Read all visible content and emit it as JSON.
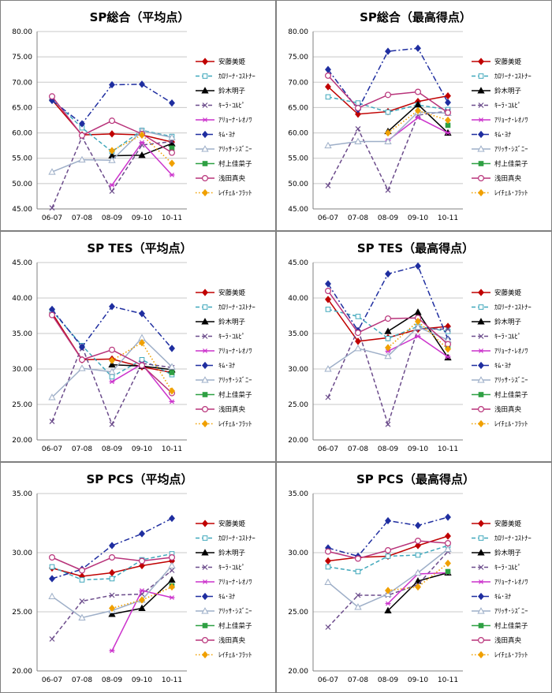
{
  "legend": [
    {
      "name": "安藤美姫",
      "color": "#C00000",
      "dash": "solid",
      "marker": "diamond",
      "filled": true
    },
    {
      "name": "ｶﾛﾘｰﾅ･ｺｽﾄﾅｰ",
      "color": "#3FA7BB",
      "dash": "dash",
      "marker": "square",
      "filled": false
    },
    {
      "name": "鈴木明子",
      "color": "#000000",
      "dash": "solid",
      "marker": "triangle",
      "filled": true
    },
    {
      "name": "ｷｰﾗ･ｺﾙﾋﾟ",
      "color": "#6B4B8B",
      "dash": "dash",
      "marker": "x",
      "filled": false
    },
    {
      "name": "ｱﾘｮｰﾅ･ﾚｵﾉﾜ",
      "color": "#CC33CC",
      "dash": "solid",
      "marker": "star",
      "filled": false
    },
    {
      "name": "ｷﾑ･ﾖﾅ",
      "color": "#1F2EA0",
      "dash": "dashdot",
      "marker": "diamond",
      "filled": true
    },
    {
      "name": "ｱﾘｯｻ･ｼｽﾞﾆｰ",
      "color": "#9EAFC8",
      "dash": "solid",
      "marker": "triangle",
      "filled": false
    },
    {
      "name": "村上佳菜子",
      "color": "#2EA043",
      "dash": "solid",
      "marker": "square",
      "filled": true
    },
    {
      "name": "浅田真央",
      "color": "#B8337A",
      "dash": "solid",
      "marker": "circle",
      "filled": false
    },
    {
      "name": "ﾚｲﾁｪﾙ･ﾌﾗｯﾄ",
      "color": "#F0A000",
      "dash": "dot",
      "marker": "diamond",
      "filled": true
    }
  ],
  "chart_data": [
    {
      "type": "line",
      "title": "SP総合（平均点）",
      "categories": [
        "06-07",
        "07-08",
        "08-09",
        "09-10",
        "10-11"
      ],
      "ylim": [
        45,
        80
      ],
      "yticks": [
        "45.00",
        "50.00",
        "55.00",
        "60.00",
        "65.00",
        "70.00",
        "75.00",
        "80.00"
      ],
      "series": [
        {
          "name": "安藤美姫",
          "values": [
            66.5,
            59.6,
            59.8,
            59.6,
            58.2
          ]
        },
        {
          "name": "ｶﾛﾘｰﾅ･ｺｽﾄﾅｰ",
          "values": [
            66.7,
            61.0,
            56.3,
            60.5,
            59.3
          ]
        },
        {
          "name": "鈴木明子",
          "values": [
            null,
            null,
            55.5,
            55.6,
            57.9
          ]
        },
        {
          "name": "ｷｰﾗ･ｺﾙﾋﾟ",
          "values": [
            45.2,
            59.2,
            48.5,
            57.6,
            58.3
          ]
        },
        {
          "name": "ｱﾘｮｰﾅ･ﾚｵﾉﾜ",
          "values": [
            null,
            null,
            49.7,
            58.1,
            51.7
          ]
        },
        {
          "name": "ｷﾑ･ﾖﾅ",
          "values": [
            66.4,
            61.8,
            69.5,
            69.6,
            65.9
          ]
        },
        {
          "name": "ｱﾘｯｻ･ｼｽﾞﾆｰ",
          "values": [
            52.3,
            54.7,
            54.6,
            60.4,
            59.1
          ]
        },
        {
          "name": "村上佳菜子",
          "values": [
            null,
            null,
            null,
            null,
            57.0
          ]
        },
        {
          "name": "浅田真央",
          "values": [
            67.2,
            59.5,
            62.4,
            59.8,
            56.1
          ]
        },
        {
          "name": "ﾚｲﾁｪﾙ･ﾌﾗｯﾄ",
          "values": [
            null,
            null,
            56.5,
            59.6,
            54.0
          ]
        }
      ]
    },
    {
      "type": "line",
      "title": "SP総合（最高得点）",
      "categories": [
        "06-07",
        "07-08",
        "08-09",
        "09-10",
        "10-11"
      ],
      "ylim": [
        45,
        80
      ],
      "yticks": [
        "45.00",
        "50.00",
        "55.00",
        "60.00",
        "65.00",
        "70.00",
        "75.00",
        "80.00"
      ],
      "series": [
        {
          "name": "安藤美姫",
          "values": [
            69.1,
            63.7,
            64.2,
            66.2,
            67.3
          ]
        },
        {
          "name": "ｶﾛﾘｰﾅ･ｺｽﾄﾅｰ",
          "values": [
            67.1,
            65.9,
            64.1,
            65.5,
            64.6
          ]
        },
        {
          "name": "鈴木明子",
          "values": [
            null,
            null,
            60.3,
            65.6,
            60.0
          ]
        },
        {
          "name": "ｷｰﾗ･ｺﾙﾋﾟ",
          "values": [
            49.6,
            60.8,
            48.7,
            63.5,
            64.3
          ]
        },
        {
          "name": "ｱﾘｮｰﾅ･ﾚｵﾉﾜ",
          "values": [
            null,
            null,
            58.5,
            63.0,
            60.0
          ]
        },
        {
          "name": "ｷﾑ･ﾖﾅ",
          "values": [
            72.5,
            64.6,
            76.1,
            76.7,
            66.0
          ]
        },
        {
          "name": "ｱﾘｯｻ･ｼｽﾞﾆｰ",
          "values": [
            57.5,
            58.3,
            58.3,
            64.1,
            63.9
          ]
        },
        {
          "name": "村上佳菜子",
          "values": [
            null,
            null,
            null,
            null,
            61.5
          ]
        },
        {
          "name": "浅田真央",
          "values": [
            71.3,
            64.9,
            67.5,
            68.1,
            64.0
          ]
        },
        {
          "name": "ﾚｲﾁｪﾙ･ﾌﾗｯﾄ",
          "values": [
            null,
            null,
            60.0,
            64.4,
            62.5
          ]
        }
      ]
    },
    {
      "type": "line",
      "title": "SP TES（平均点）",
      "categories": [
        "06-07",
        "07-08",
        "08-09",
        "09-10",
        "10-11"
      ],
      "ylim": [
        20,
        45
      ],
      "yticks": [
        "20.00",
        "25.00",
        "30.00",
        "35.00",
        "40.00",
        "45.00"
      ],
      "series": [
        {
          "name": "安藤美姫",
          "values": [
            37.9,
            31.3,
            31.4,
            30.3,
            29.5
          ]
        },
        {
          "name": "ｶﾛﾘｰﾅ･ｺｽﾄﾅｰ",
          "values": [
            38.2,
            33.3,
            28.9,
            31.3,
            29.2
          ]
        },
        {
          "name": "鈴木明子",
          "values": [
            null,
            null,
            30.6,
            30.4,
            29.9
          ]
        },
        {
          "name": "ｷｰﾗ･ｺﾙﾋﾟ",
          "values": [
            22.6,
            33.2,
            22.2,
            30.8,
            30.2
          ]
        },
        {
          "name": "ｱﾘｮｰﾅ･ﾚｵﾉﾜ",
          "values": [
            null,
            null,
            28.2,
            30.7,
            25.4
          ]
        },
        {
          "name": "ｷﾑ･ﾖﾅ",
          "values": [
            38.4,
            33.1,
            38.8,
            37.8,
            32.9
          ]
        },
        {
          "name": "ｱﾘｯｻ･ｼｽﾞﾆｰ",
          "values": [
            26.0,
            30.1,
            29.6,
            34.4,
            30.3
          ]
        },
        {
          "name": "村上佳菜子",
          "values": [
            null,
            null,
            null,
            null,
            29.5
          ]
        },
        {
          "name": "浅田真央",
          "values": [
            37.6,
            31.3,
            32.7,
            30.5,
            26.6
          ]
        },
        {
          "name": "ﾚｲﾁｪﾙ･ﾌﾗｯﾄ",
          "values": [
            null,
            null,
            31.2,
            33.7,
            26.9
          ]
        }
      ]
    },
    {
      "type": "line",
      "title": "SP TES（最高得点）",
      "categories": [
        "06-07",
        "07-08",
        "08-09",
        "09-10",
        "10-11"
      ],
      "ylim": [
        20,
        45
      ],
      "yticks": [
        "20.00",
        "25.00",
        "30.00",
        "35.00",
        "40.00",
        "45.00"
      ],
      "series": [
        {
          "name": "安藤美姫",
          "values": [
            39.8,
            33.9,
            34.4,
            35.6,
            36.0
          ]
        },
        {
          "name": "ｶﾛﾘｰﾅ･ｺｽﾄﾅｰ",
          "values": [
            38.4,
            37.4,
            34.3,
            36.0,
            35.3
          ]
        },
        {
          "name": "鈴木明子",
          "values": [
            null,
            null,
            35.3,
            38.0,
            31.6
          ]
        },
        {
          "name": "ｷｰﾗ･ｺﾙﾋﾟ",
          "values": [
            26.0,
            35.6,
            22.2,
            35.7,
            35.6
          ]
        },
        {
          "name": "ｱﾘｮｰﾅ･ﾚｵﾉﾜ",
          "values": [
            null,
            null,
            32.5,
            34.6,
            31.7
          ]
        },
        {
          "name": "ｷﾑ･ﾖﾅ",
          "values": [
            42.0,
            35.4,
            43.4,
            44.5,
            34.2
          ]
        },
        {
          "name": "ｱﾘｯｻ･ｼｽﾞﾆｰ",
          "values": [
            30.0,
            32.9,
            31.8,
            35.9,
            34.1
          ]
        },
        {
          "name": "村上佳菜子",
          "values": [
            null,
            null,
            null,
            null,
            33.1
          ]
        },
        {
          "name": "浅田真央",
          "values": [
            41.0,
            35.1,
            37.1,
            37.2,
            33.5
          ]
        },
        {
          "name": "ﾚｲﾁｪﾙ･ﾌﾗｯﾄ",
          "values": [
            null,
            null,
            33.0,
            36.7,
            32.8
          ]
        }
      ]
    },
    {
      "type": "line",
      "title": "SP PCS（平均点）",
      "categories": [
        "06-07",
        "07-08",
        "08-09",
        "09-10",
        "10-11"
      ],
      "ylim": [
        20,
        35
      ],
      "yticks": [
        "20.00",
        "25.00",
        "30.00",
        "35.00"
      ],
      "series": [
        {
          "name": "安藤美姫",
          "values": [
            28.7,
            28.0,
            28.3,
            28.9,
            29.3
          ]
        },
        {
          "name": "ｶﾛﾘｰﾅ･ｺｽﾄﾅｰ",
          "values": [
            28.8,
            27.7,
            27.8,
            29.4,
            29.9
          ]
        },
        {
          "name": "鈴木明子",
          "values": [
            null,
            null,
            24.8,
            25.3,
            27.7
          ]
        },
        {
          "name": "ｷｰﾗ･ｺﾙﾋﾟ",
          "values": [
            22.7,
            25.9,
            26.4,
            26.5,
            28.5
          ]
        },
        {
          "name": "ｱﾘｮｰﾅ･ﾚｵﾉﾜ",
          "values": [
            null,
            null,
            21.7,
            26.8,
            26.2
          ]
        },
        {
          "name": "ｷﾑ･ﾖﾅ",
          "values": [
            27.8,
            28.6,
            30.6,
            31.6,
            32.9
          ]
        },
        {
          "name": "ｱﾘｯｻ･ｼｽﾞﾆｰ",
          "values": [
            26.3,
            24.5,
            25.1,
            26.0,
            28.9
          ]
        },
        {
          "name": "村上佳菜子",
          "values": [
            null,
            null,
            null,
            null,
            27.2
          ]
        },
        {
          "name": "浅田真央",
          "values": [
            29.6,
            28.5,
            29.6,
            29.3,
            29.6
          ]
        },
        {
          "name": "ﾚｲﾁｪﾙ･ﾌﾗｯﾄ",
          "values": [
            null,
            null,
            25.3,
            26.0,
            27.1
          ]
        }
      ]
    },
    {
      "type": "line",
      "title": "SP PCS（最高得点）",
      "categories": [
        "06-07",
        "07-08",
        "08-09",
        "09-10",
        "10-11"
      ],
      "ylim": [
        20,
        35
      ],
      "yticks": [
        "20.00",
        "25.00",
        "30.00",
        "35.00"
      ],
      "series": [
        {
          "name": "安藤美姫",
          "values": [
            29.3,
            29.6,
            29.7,
            30.6,
            31.4
          ]
        },
        {
          "name": "ｶﾛﾘｰﾅ･ｺｽﾄﾅｰ",
          "values": [
            28.8,
            28.4,
            29.7,
            29.8,
            30.6
          ]
        },
        {
          "name": "鈴木明子",
          "values": [
            null,
            null,
            25.1,
            27.6,
            28.3
          ]
        },
        {
          "name": "ｷｰﾗ･ｺﾙﾋﾟ",
          "values": [
            23.7,
            26.4,
            26.4,
            27.3,
            30.1
          ]
        },
        {
          "name": "ｱﾘｮｰﾅ･ﾚｵﾉﾜ",
          "values": [
            null,
            null,
            25.7,
            28.2,
            28.3
          ]
        },
        {
          "name": "ｷﾑ･ﾖﾅ",
          "values": [
            30.4,
            29.7,
            32.7,
            32.3,
            33.0
          ]
        },
        {
          "name": "ｱﾘｯｻ･ｼｽﾞﾆｰ",
          "values": [
            27.5,
            25.4,
            26.5,
            28.3,
            30.3
          ]
        },
        {
          "name": "村上佳菜子",
          "values": [
            null,
            null,
            null,
            null,
            28.4
          ]
        },
        {
          "name": "浅田真央",
          "values": [
            30.1,
            29.5,
            30.2,
            31.0,
            30.8
          ]
        },
        {
          "name": "ﾚｲﾁｪﾙ･ﾌﾗｯﾄ",
          "values": [
            null,
            null,
            26.8,
            27.1,
            29.1
          ]
        }
      ]
    }
  ]
}
